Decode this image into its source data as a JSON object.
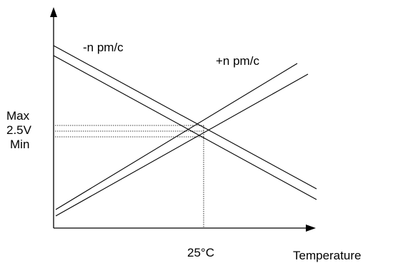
{
  "diagram": {
    "labels": {
      "negative_tempco": "-n pm/c",
      "positive_tempco": "+n pm/c",
      "max": "Max",
      "nominal": "2.5V",
      "min": "Min",
      "reference_temp": "25°C",
      "x_axis": "Temperature"
    },
    "colors": {
      "line": "#000000",
      "background": "#ffffff"
    }
  }
}
